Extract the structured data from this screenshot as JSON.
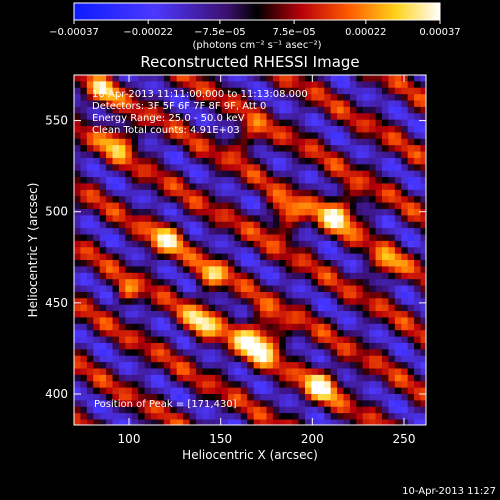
{
  "chart_data": {
    "type": "heatmap",
    "title": "Reconstructed RHESSI Image",
    "xlabel": "Heliocentric X (arcsec)",
    "ylabel": "Heliocentric Y (arcsec)",
    "xlim": [
      70,
      262
    ],
    "ylim": [
      383,
      575
    ],
    "x_ticks": [
      100,
      150,
      200,
      250
    ],
    "y_ticks": [
      400,
      450,
      500,
      550
    ],
    "x_tick_labels": [
      "100",
      "150",
      "200",
      "250"
    ],
    "y_tick_labels": [
      "400",
      "450",
      "500",
      "550"
    ],
    "colorbar": {
      "min": -0.00037,
      "max": 0.00037,
      "tick_values": [
        -0.00037,
        -0.00022,
        -7.5e-05,
        7.5e-05,
        0.00022,
        0.00037
      ],
      "tick_labels": [
        "−0.00037",
        "−0.00022",
        "−7.5e−05",
        "7.5e−05",
        "0.00022",
        "0.00037"
      ],
      "unit_label": "(photons cm⁻² s⁻¹ asec⁻²)"
    },
    "annotations": {
      "time_range": "10-Apr-2013 11:11:00.000 to 11:13:08.000",
      "detectors": "Detectors: 3F 5F 6F 7F 8F 9F, Att 0",
      "energy_range": "Energy Range: 25.0 - 50.0 keV",
      "clean_counts": "Clean    Total counts: 4.91E+03",
      "peak": "Position of Peak = [171,430]"
    },
    "peak_position": [
      171,
      430
    ],
    "footer_timestamp": "10-Apr-2013 11:27",
    "grid": false,
    "legend": "colorbar-top"
  }
}
